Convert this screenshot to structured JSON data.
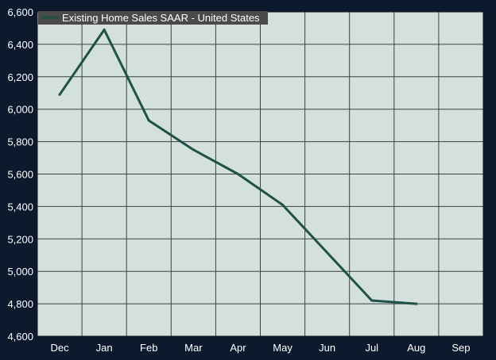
{
  "chart_data": {
    "type": "line",
    "title": "",
    "xlabel": "",
    "ylabel": "",
    "categories": [
      "Dec",
      "Jan",
      "Feb",
      "Mar",
      "Apr",
      "May",
      "Jun",
      "Jul",
      "Aug",
      "Sep"
    ],
    "y_ticks": [
      "4,600",
      "4,800",
      "5,000",
      "5,200",
      "5,400",
      "5,600",
      "5,800",
      "6,000",
      "6,200",
      "6,400",
      "6,600"
    ],
    "ylim": [
      4600,
      6600
    ],
    "grid": true,
    "legend_position": "top-left",
    "series": [
      {
        "name": "Existing Home Sales SAAR - United States",
        "color": "#1f5147",
        "values": [
          6090,
          6490,
          5930,
          5750,
          5600,
          5410,
          null,
          4820,
          4800,
          null
        ]
      }
    ]
  },
  "colors": {
    "background": "#0d1a2e",
    "plot_area": "#d3e0db",
    "grid": "#3b4047",
    "legend_box": "#4a4a4a"
  }
}
